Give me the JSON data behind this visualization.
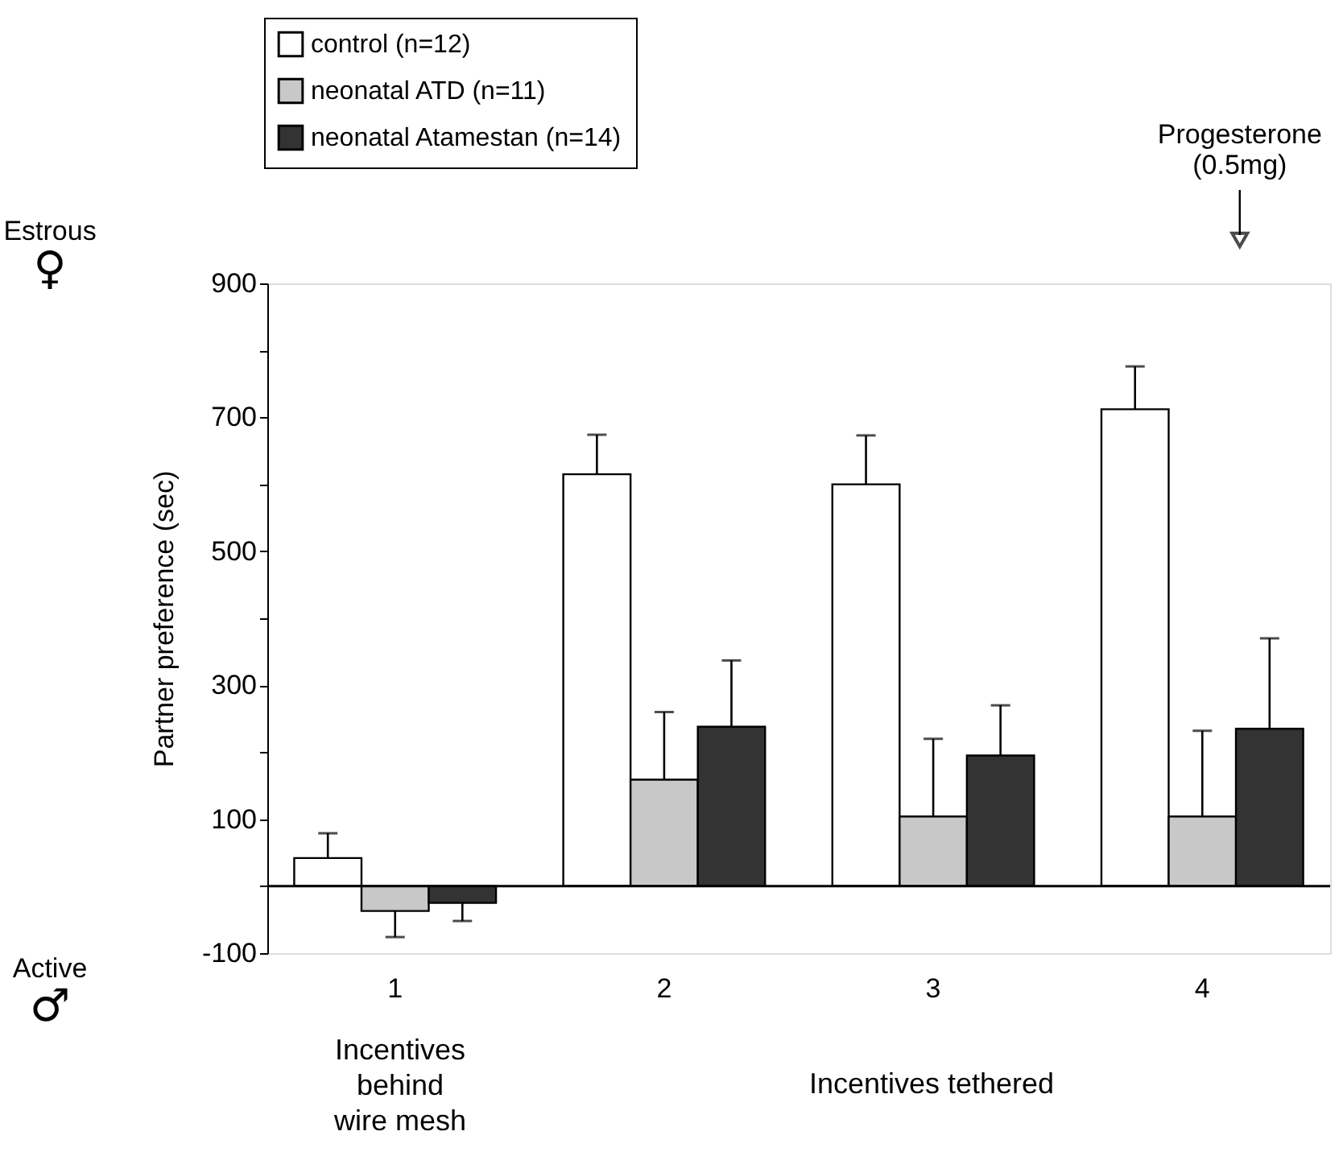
{
  "chart_data": {
    "type": "bar",
    "ylabel": "Partner preference (sec)",
    "categories": [
      "1",
      "2",
      "3",
      "4"
    ],
    "series": [
      {
        "name": "control (n=12)",
        "color": "#ffffff",
        "values": [
          42,
          615,
          600,
          712
        ],
        "errors": [
          [
            42,
            79
          ],
          [
            615,
            674
          ],
          [
            600,
            673
          ],
          [
            712,
            776
          ]
        ]
      },
      {
        "name": "neonatal ATD (n=11)",
        "color": "#c8c8c8",
        "values": [
          -37,
          159,
          104,
          104
        ],
        "errors": [
          [
            -76,
            -37
          ],
          [
            159,
            260
          ],
          [
            104,
            220
          ],
          [
            104,
            232
          ]
        ]
      },
      {
        "name": "neonatal Atamestan (n=14)",
        "color": "#333333",
        "values": [
          -25,
          238,
          195,
          235
        ],
        "errors": [
          [
            -52,
            -25
          ],
          [
            238,
            337
          ],
          [
            195,
            270
          ],
          [
            235,
            370
          ]
        ]
      }
    ],
    "ylim": [
      -100,
      900
    ],
    "yticks": [
      -100,
      {
        "value": 0,
        "label": null
      },
      100,
      {
        "value": 200,
        "label": null
      },
      300,
      {
        "value": 400,
        "label": null
      },
      500,
      {
        "value": 600,
        "label": null
      },
      700,
      {
        "value": 800,
        "label": null
      },
      900
    ],
    "ref_lines": [
      {
        "axis": "y",
        "value": 0,
        "label": null,
        "color": "#000000"
      }
    ],
    "annotations": [
      "Estrous ♀",
      "Active ♂",
      "Progesterone (0.5mg)",
      "Incentives behind wire mesh",
      "Incentives tethered"
    ],
    "grid": false,
    "legend": "top left"
  }
}
